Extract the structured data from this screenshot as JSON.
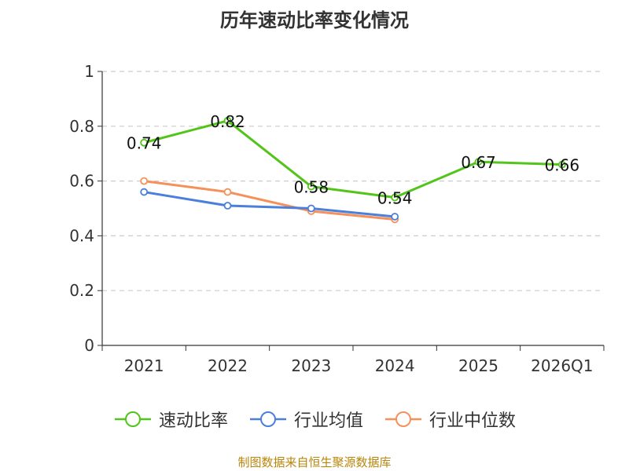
{
  "chart_data": {
    "type": "line",
    "title": "历年速动比率变化情况",
    "categories": [
      "2021",
      "2022",
      "2023",
      "2024",
      "2025",
      "2026Q1"
    ],
    "ylim": [
      0,
      1
    ],
    "yticks": [
      "0",
      "0.2",
      "0.4",
      "0.6",
      "0.8",
      "1"
    ],
    "grid": true,
    "legend_position": "bottom-center",
    "series": [
      {
        "name": "速动比率",
        "color": "#52c41a",
        "values": [
          0.74,
          0.82,
          0.58,
          0.54,
          0.67,
          0.66
        ],
        "labels": [
          "0.74",
          "0.82",
          "0.58",
          "0.54",
          "0.67",
          "0.66"
        ]
      },
      {
        "name": "行业均值",
        "color": "#4a7fdb",
        "values": [
          0.56,
          0.51,
          0.5,
          0.47,
          null,
          null
        ]
      },
      {
        "name": "行业中位数",
        "color": "#f5905a",
        "values": [
          0.6,
          0.56,
          0.49,
          0.46,
          null,
          null
        ]
      }
    ]
  },
  "source": "制图数据来自恒生聚源数据库"
}
